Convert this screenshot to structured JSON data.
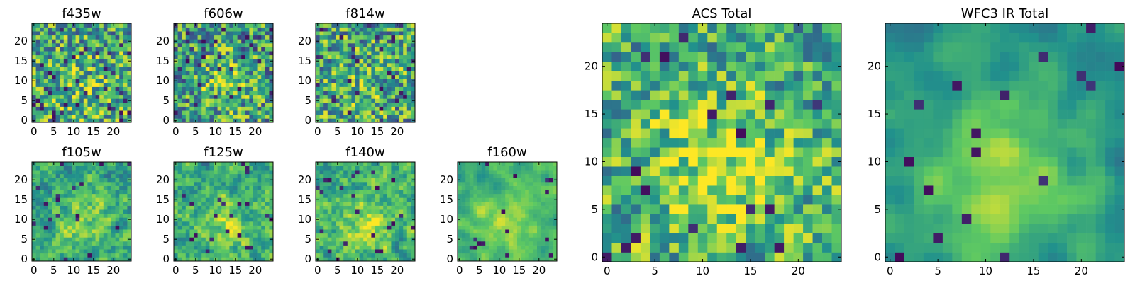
{
  "chart_data": {
    "type": "heatmap",
    "colormap": "viridis",
    "colormap_stops": [
      "#440154",
      "#3b528b",
      "#21918c",
      "#5ec962",
      "#fde725"
    ],
    "frame_color": "#000000",
    "grid": false,
    "panels": [
      {
        "title": "f435w",
        "x_ticks": [
          "0",
          "5",
          "10",
          "15",
          "20"
        ],
        "y_ticks": [
          "0",
          "5",
          "10",
          "15",
          "20"
        ],
        "xlim": [
          0,
          24
        ],
        "ylim": [
          0,
          24
        ],
        "grid_size": 25
      },
      {
        "title": "f606w",
        "x_ticks": [
          "0",
          "5",
          "10",
          "15",
          "20"
        ],
        "y_ticks": [
          "0",
          "5",
          "10",
          "15",
          "20"
        ],
        "xlim": [
          0,
          24
        ],
        "ylim": [
          0,
          24
        ],
        "grid_size": 25
      },
      {
        "title": "f814w",
        "x_ticks": [
          "0",
          "5",
          "10",
          "15",
          "20"
        ],
        "y_ticks": [
          "0",
          "5",
          "10",
          "15",
          "20"
        ],
        "xlim": [
          0,
          24
        ],
        "ylim": [
          0,
          24
        ],
        "grid_size": 25
      },
      {
        "title": "f105w",
        "x_ticks": [
          "0",
          "5",
          "10",
          "15",
          "20"
        ],
        "y_ticks": [
          "0",
          "5",
          "10",
          "15",
          "20"
        ],
        "xlim": [
          0,
          24
        ],
        "ylim": [
          0,
          24
        ],
        "grid_size": 25
      },
      {
        "title": "f125w",
        "x_ticks": [
          "0",
          "5",
          "10",
          "15",
          "20"
        ],
        "y_ticks": [
          "0",
          "5",
          "10",
          "15",
          "20"
        ],
        "xlim": [
          0,
          24
        ],
        "ylim": [
          0,
          24
        ],
        "grid_size": 25
      },
      {
        "title": "f140w",
        "x_ticks": [
          "0",
          "5",
          "10",
          "15",
          "20"
        ],
        "y_ticks": [
          "0",
          "5",
          "10",
          "15",
          "20"
        ],
        "xlim": [
          0,
          24
        ],
        "ylim": [
          0,
          24
        ],
        "grid_size": 25
      },
      {
        "title": "f160w",
        "x_ticks": [
          "0",
          "5",
          "10",
          "15",
          "20"
        ],
        "y_ticks": [
          "0",
          "5",
          "10",
          "15",
          "20"
        ],
        "xlim": [
          0,
          24
        ],
        "ylim": [
          0,
          24
        ],
        "grid_size": 25
      },
      {
        "title": "ACS Total",
        "x_ticks": [
          "0",
          "5",
          "10",
          "15",
          "20"
        ],
        "y_ticks": [
          "0",
          "5",
          "10",
          "15",
          "20"
        ],
        "xlim": [
          0,
          24
        ],
        "ylim": [
          0,
          24
        ],
        "grid_size": 25
      },
      {
        "title": "WFC3 IR Total",
        "x_ticks": [
          "0",
          "5",
          "10",
          "15",
          "20"
        ],
        "y_ticks": [
          "0",
          "5",
          "10",
          "15",
          "20"
        ],
        "xlim": [
          0,
          24
        ],
        "ylim": [
          0,
          24
        ],
        "grid_size": 25
      }
    ]
  }
}
